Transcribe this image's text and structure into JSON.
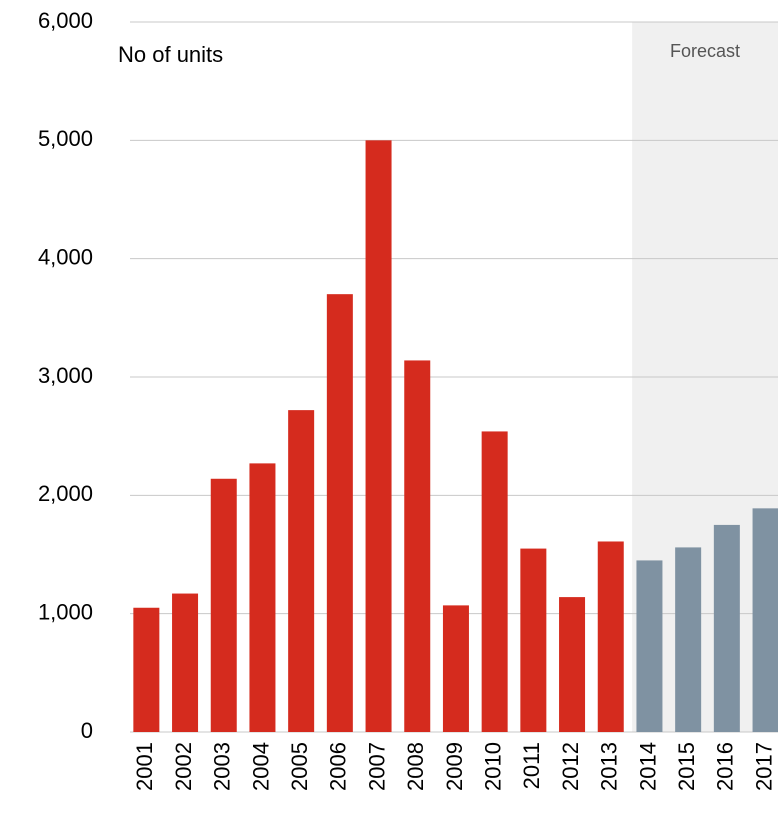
{
  "chart_data": {
    "type": "bar",
    "title": "No of units",
    "categories": [
      "2001",
      "2002",
      "2003",
      "2004",
      "2005",
      "2006",
      "2007",
      "2008",
      "2009",
      "2010",
      "2011",
      "2012",
      "2013",
      "2014",
      "2015",
      "2016",
      "2017"
    ],
    "values": [
      1050,
      1170,
      2140,
      2270,
      2720,
      3700,
      5000,
      3140,
      1070,
      2540,
      1550,
      1140,
      1610,
      1450,
      1560,
      1750,
      1890
    ],
    "colors": [
      "#d52b1e",
      "#d52b1e",
      "#d52b1e",
      "#d52b1e",
      "#d52b1e",
      "#d52b1e",
      "#d52b1e",
      "#d52b1e",
      "#d52b1e",
      "#d52b1e",
      "#d52b1e",
      "#d52b1e",
      "#d52b1e",
      "#7f92a2",
      "#7f92a2",
      "#7f92a2",
      "#7f92a2"
    ],
    "annotations": [
      {
        "text": "Forecast",
        "from": "2014"
      }
    ],
    "ylim": [
      0,
      6000
    ],
    "yticks": [
      0,
      {
        "value": 1000,
        "label": "1,000"
      },
      {
        "value": 2000,
        "label": "2,000"
      },
      {
        "value": 3000,
        "label": "3,000"
      },
      {
        "value": 4000,
        "label": "4,000"
      },
      {
        "value": 5000,
        "label": "5,000"
      },
      {
        "value": 6000,
        "label": "6,000"
      }
    ],
    "grid": true
  }
}
